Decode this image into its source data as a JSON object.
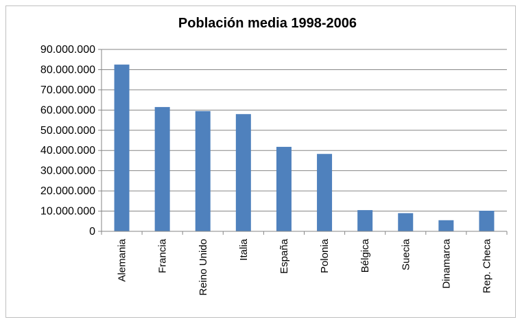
{
  "chart_data": {
    "type": "bar",
    "title": "Población media 1998-2006",
    "xlabel": "",
    "ylabel": "",
    "categories": [
      "Alemania",
      "Francia",
      "Reino Unido",
      "Italia",
      "España",
      "Polonia",
      "Bélgica",
      "Suecia",
      "Dinamarca",
      "Rep. Checa"
    ],
    "values": [
      82500000,
      61500000,
      59500000,
      58000000,
      41800000,
      38300000,
      10500000,
      9000000,
      5500000,
      10200000
    ],
    "ylim": [
      0,
      90000000
    ],
    "yticks": [
      0,
      10000000,
      20000000,
      30000000,
      40000000,
      50000000,
      60000000,
      70000000,
      80000000,
      90000000
    ],
    "ytick_labels": [
      "0",
      "10.000.000",
      "20.000.000",
      "30.000.000",
      "40.000.000",
      "50.000.000",
      "60.000.000",
      "70.000.000",
      "80.000.000",
      "90.000.000"
    ],
    "grid": true,
    "legend": "none",
    "bar_color": "#4f81bd",
    "grid_color": "#868686"
  }
}
